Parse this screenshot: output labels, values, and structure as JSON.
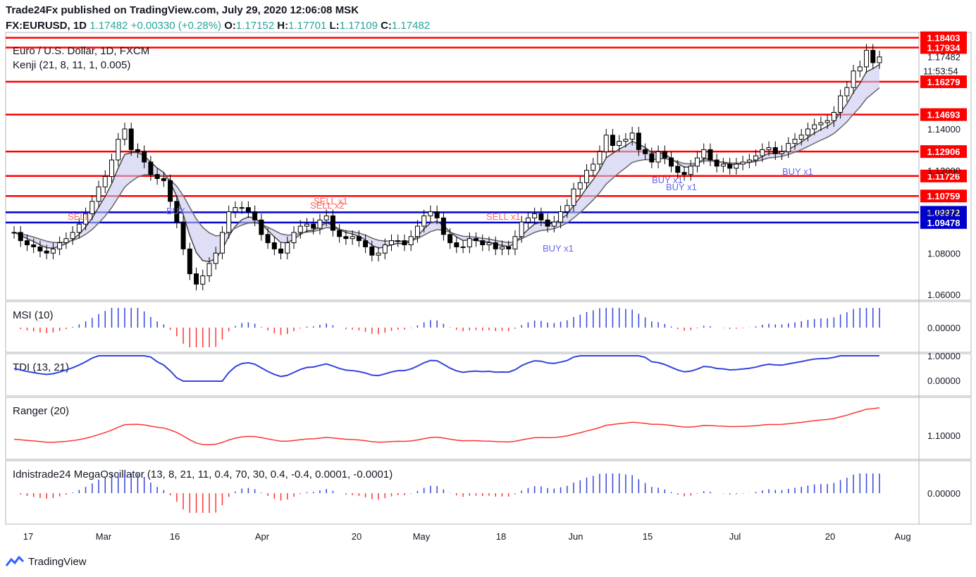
{
  "header": {
    "publisher_line": "Trade24Fx published on TradingView.com, July 29, 2020 12:06:08 MSK",
    "symbol": "FX:EURUSD, 1D",
    "last": "1.17482",
    "change": "+0.00330 (+0.28%)",
    "o_label": "O:",
    "o": "1.17152",
    "h_label": "H:",
    "h": "1.17701",
    "l_label": "L:",
    "l": "1.17109",
    "c_label": "C:",
    "c": "1.17482"
  },
  "footer": {
    "brand": "TradingView"
  },
  "colors": {
    "up": "#ffffff",
    "down": "#000000",
    "level_red": "#ff0000",
    "level_blue": "#0000cc",
    "ribbon_fill": "#c8c8f0",
    "ribbon_fill_bear": "#f5c6cb"
  },
  "chart_data": [
    {
      "type": "candlestick",
      "title": "Euro / U.S. Dollar, 1D, FXCM",
      "indicator": "Kenji (21, 8, 11, 1, 0.005)",
      "x_ticks": [
        "17",
        "Mar",
        "16",
        "Apr",
        "20",
        "May",
        "18",
        "Jun",
        "15",
        "Jul",
        "20",
        "Aug"
      ],
      "y_ticks": [
        "1.06000",
        "1.08000",
        "1.10000",
        "1.12000",
        "1.14000"
      ],
      "price_label_current": "1.17482",
      "time_label": "11:53:54",
      "levels": [
        {
          "value": 1.18403,
          "label": "1.18403",
          "color": "#ff0000"
        },
        {
          "value": 1.17934,
          "label": "1.17934",
          "color": "#ff0000"
        },
        {
          "value": 1.16279,
          "label": "1.16279",
          "color": "#ff0000"
        },
        {
          "value": 1.14693,
          "label": "1.14693",
          "color": "#ff0000"
        },
        {
          "value": 1.12906,
          "label": "1.12906",
          "color": "#ff0000"
        },
        {
          "value": 1.11726,
          "label": "1.11726",
          "color": "#ff0000"
        },
        {
          "value": 1.10759,
          "label": "1.10759",
          "color": "#ff0000"
        },
        {
          "value": 1.09972,
          "label": "1.09972",
          "color": "#0000cc"
        },
        {
          "value": 1.09478,
          "label": "1.09478",
          "color": "#0000cc"
        }
      ],
      "close": [
        1.09,
        1.086,
        1.084,
        1.083,
        1.081,
        1.08,
        1.082,
        1.085,
        1.087,
        1.09,
        1.094,
        1.099,
        1.105,
        1.112,
        1.117,
        1.125,
        1.135,
        1.14,
        1.13,
        1.129,
        1.124,
        1.118,
        1.116,
        1.115,
        1.105,
        1.095,
        1.082,
        1.07,
        1.065,
        1.069,
        1.075,
        1.08,
        1.09,
        1.1,
        1.102,
        1.102,
        1.1,
        1.096,
        1.089,
        1.085,
        1.082,
        1.08,
        1.085,
        1.09,
        1.093,
        1.094,
        1.092,
        1.096,
        1.098,
        1.091,
        1.088,
        1.087,
        1.088,
        1.086,
        1.083,
        1.079,
        1.08,
        1.084,
        1.086,
        1.086,
        1.084,
        1.088,
        1.093,
        1.098,
        1.1,
        1.097,
        1.089,
        1.085,
        1.083,
        1.083,
        1.087,
        1.086,
        1.084,
        1.085,
        1.082,
        1.083,
        1.082,
        1.088,
        1.095,
        1.097,
        1.099,
        1.096,
        1.093,
        1.095,
        1.1,
        1.103,
        1.111,
        1.114,
        1.12,
        1.123,
        1.129,
        1.137,
        1.132,
        1.134,
        1.135,
        1.138,
        1.13,
        1.128,
        1.124,
        1.129,
        1.126,
        1.122,
        1.119,
        1.118,
        1.122,
        1.126,
        1.13,
        1.125,
        1.122,
        1.123,
        1.121,
        1.123,
        1.124,
        1.125,
        1.127,
        1.13,
        1.131,
        1.128,
        1.129,
        1.133,
        1.135,
        1.137,
        1.14,
        1.142,
        1.143,
        1.144,
        1.148,
        1.156,
        1.16,
        1.168,
        1.17,
        1.178,
        1.172,
        1.1748
      ],
      "sub_panels": [
        {
          "name": "MSI (10)",
          "y_ticks": [
            "0.00000"
          ]
        },
        {
          "name": "TDI (13, 21)",
          "y_ticks": [
            "1.00000",
            "0.00000"
          ]
        },
        {
          "name": "Ranger (20)",
          "y_ticks": [
            "1.10000"
          ]
        },
        {
          "name": "Idnistrade24 MegaOscillator (13, 8, 21, 11, 0.4, 70, 30, 0.4, -0.4, 0.0001, -0.0001)",
          "y_ticks": [
            "0.00000"
          ]
        }
      ],
      "annotations": [
        "SELL",
        "SELL x1",
        "SELL x2",
        "SELL x1",
        "BUY",
        "BUY x1",
        "BUY x1",
        "BUY x1",
        "BUY x1"
      ]
    }
  ]
}
